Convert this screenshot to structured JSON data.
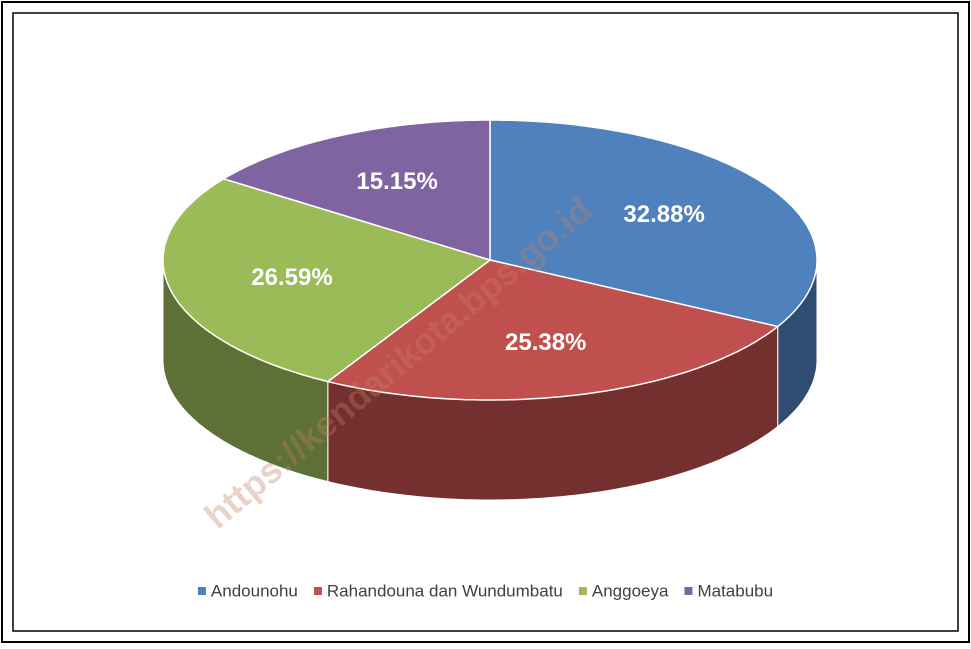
{
  "chart_data": {
    "type": "pie",
    "categories": [
      "Andounohu",
      "Rahandouna dan Wundumbatu",
      "Anggoeya",
      "Matabubu"
    ],
    "values": [
      32.88,
      25.38,
      26.59,
      15.15
    ],
    "value_labels": [
      "32.88%",
      "25.38%",
      "26.59%",
      "15.15%"
    ],
    "colors": [
      "#4f81bd",
      "#c0504d",
      "#9bbb59",
      "#8064a2"
    ],
    "legend": "bottom",
    "watermark": "https://kendarikota.bps.go.id"
  }
}
